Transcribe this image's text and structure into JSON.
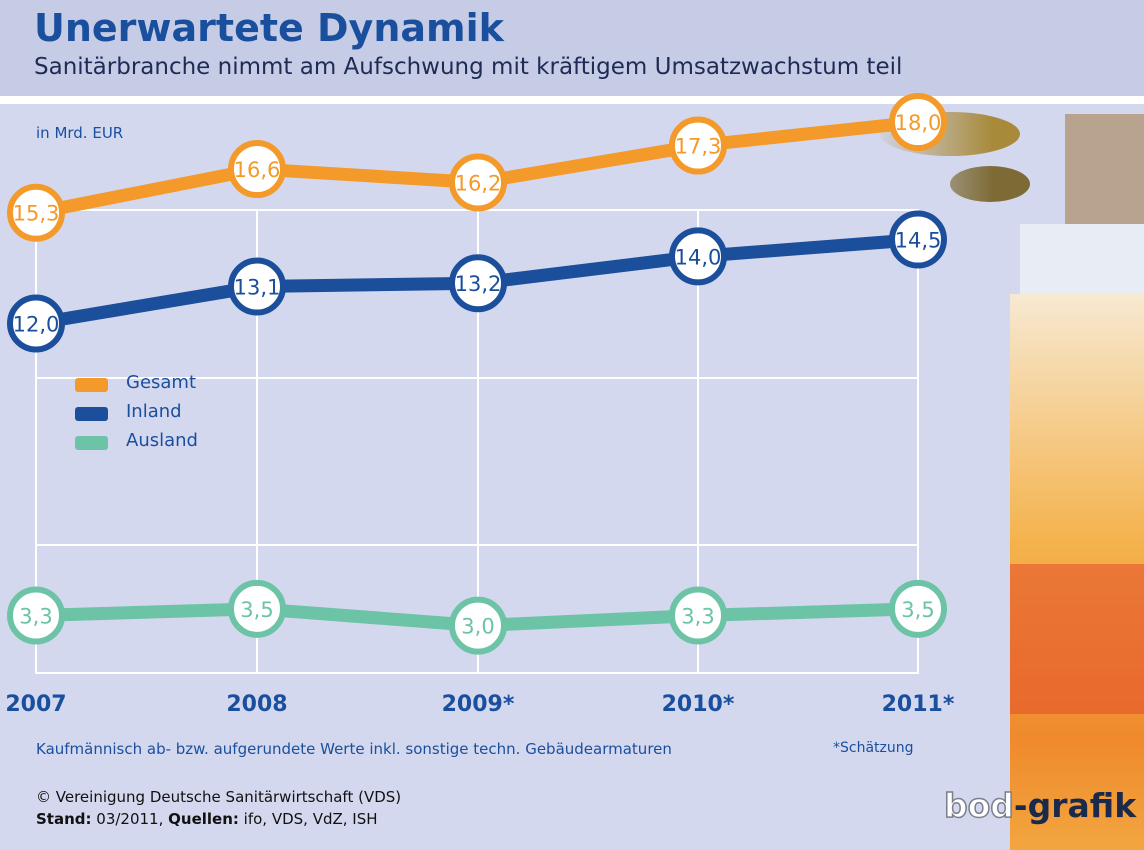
{
  "header": {
    "title": "Unerwartete Dynamik",
    "subtitle": "Sanitärbranche nimmt am Aufschwung mit kräftigem Umsatzwachstum teil"
  },
  "chart_data": {
    "type": "line",
    "unit_label": "in Mrd. EUR",
    "categories": [
      "2007",
      "2008",
      "2009*",
      "2010*",
      "2011*"
    ],
    "series": [
      {
        "name": "Gesamt",
        "color": "#f39a2a",
        "values": [
          15.3,
          16.6,
          16.2,
          17.3,
          18.0
        ],
        "labels": [
          "15,3",
          "16,6",
          "16,2",
          "17,3",
          "18,0"
        ]
      },
      {
        "name": "Inland",
        "color": "#1b4f9c",
        "values": [
          12.0,
          13.1,
          13.2,
          14.0,
          14.5
        ],
        "labels": [
          "12,0",
          "13,1",
          "13,2",
          "14,0",
          "14,5"
        ]
      },
      {
        "name": "Ausland",
        "color": "#6cc3a6",
        "values": [
          3.3,
          3.5,
          3.0,
          3.3,
          3.5
        ],
        "labels": [
          "3,3",
          "3,5",
          "3,0",
          "3,3",
          "3,5"
        ]
      }
    ],
    "grid": true,
    "legend": "left"
  },
  "footer": {
    "note": "Kaufmännisch ab- bzw. aufgerundete Werte inkl. sonstige techn. Gebäudearmaturen",
    "estimate_note": "*Schätzung",
    "copyright": "© Vereinigung Deutsche Sanitärwirtschaft (VDS)",
    "stand_label": "Stand:",
    "stand_value": " 03/2011, ",
    "sources_label": "Quellen:",
    "sources_value": " ifo, VDS, VdZ, ISH",
    "brand_part1": "bod",
    "brand_part2": "-grafik"
  },
  "colors": {
    "title": "#1a4f9e",
    "header_bg": "#c7cce6",
    "panel_bg": "#d4d8ee",
    "grid": "#ffffff"
  }
}
